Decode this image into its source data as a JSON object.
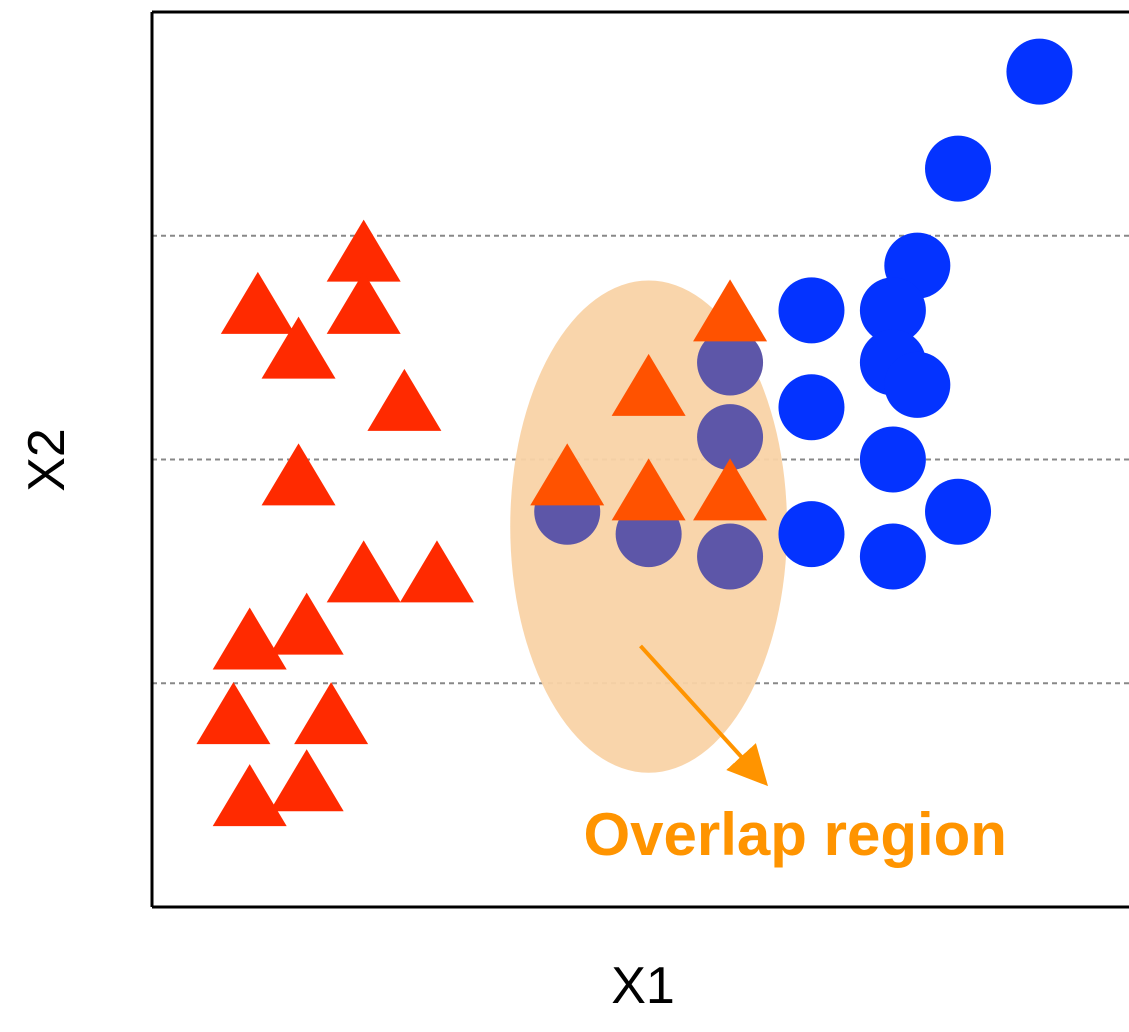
{
  "chart_data": {
    "type": "scatter",
    "title": "",
    "xlabel": "X1",
    "ylabel": "X2",
    "xlim": [
      0,
      12
    ],
    "ylim": [
      0,
      12
    ],
    "grid": "horizontal dashed lines",
    "legend": "none",
    "gridlines_y": [
      3,
      6,
      9
    ],
    "series": [
      {
        "marker": "triangle",
        "color": "#ff2a00",
        "points": [
          [
            2.6,
            8.8
          ],
          [
            1.3,
            8.1
          ],
          [
            2.6,
            8.1
          ],
          [
            1.8,
            7.5
          ],
          [
            3.1,
            6.8
          ],
          [
            1.8,
            5.8
          ],
          [
            2.6,
            4.5
          ],
          [
            3.5,
            4.5
          ],
          [
            1.2,
            3.6
          ],
          [
            1.9,
            3.8
          ],
          [
            1.0,
            2.6
          ],
          [
            2.2,
            2.6
          ],
          [
            1.2,
            1.5
          ],
          [
            1.9,
            1.7
          ]
        ]
      },
      {
        "marker": "circle",
        "color": "#0433ff",
        "points": [
          [
            10.9,
            11.2
          ],
          [
            9.9,
            9.9
          ],
          [
            9.4,
            8.6
          ],
          [
            8.1,
            8.0
          ],
          [
            9.1,
            8.0
          ],
          [
            9.1,
            7.3
          ],
          [
            9.4,
            7.0
          ],
          [
            8.1,
            6.7
          ],
          [
            9.1,
            6.0
          ],
          [
            9.9,
            5.3
          ],
          [
            8.1,
            5.0
          ],
          [
            9.1,
            4.7
          ]
        ]
      },
      {
        "marker": "circle",
        "color": "#5d56a8",
        "points": [
          [
            7.1,
            7.3
          ],
          [
            7.1,
            6.3
          ],
          [
            5.1,
            5.3
          ],
          [
            6.1,
            5.0
          ],
          [
            7.1,
            4.7
          ]
        ]
      },
      {
        "marker": "triangle",
        "color": "#ff5200",
        "points": [
          [
            7.1,
            8.0
          ],
          [
            6.1,
            7.0
          ],
          [
            5.1,
            5.8
          ],
          [
            6.1,
            5.6
          ],
          [
            7.1,
            5.6
          ]
        ]
      }
    ],
    "annotations": [
      {
        "text": "Overlap region",
        "color": "#ff9400",
        "region_fill": "#f9d3a7",
        "region_center": [
          6.1,
          5.1
        ],
        "region_radii": [
          1.7,
          3.3
        ],
        "arrow_from": [
          6.0,
          3.5
        ],
        "arrow_to": [
          7.5,
          1.7
        ],
        "text_position": [
          5.3,
          0.7
        ]
      }
    ]
  }
}
